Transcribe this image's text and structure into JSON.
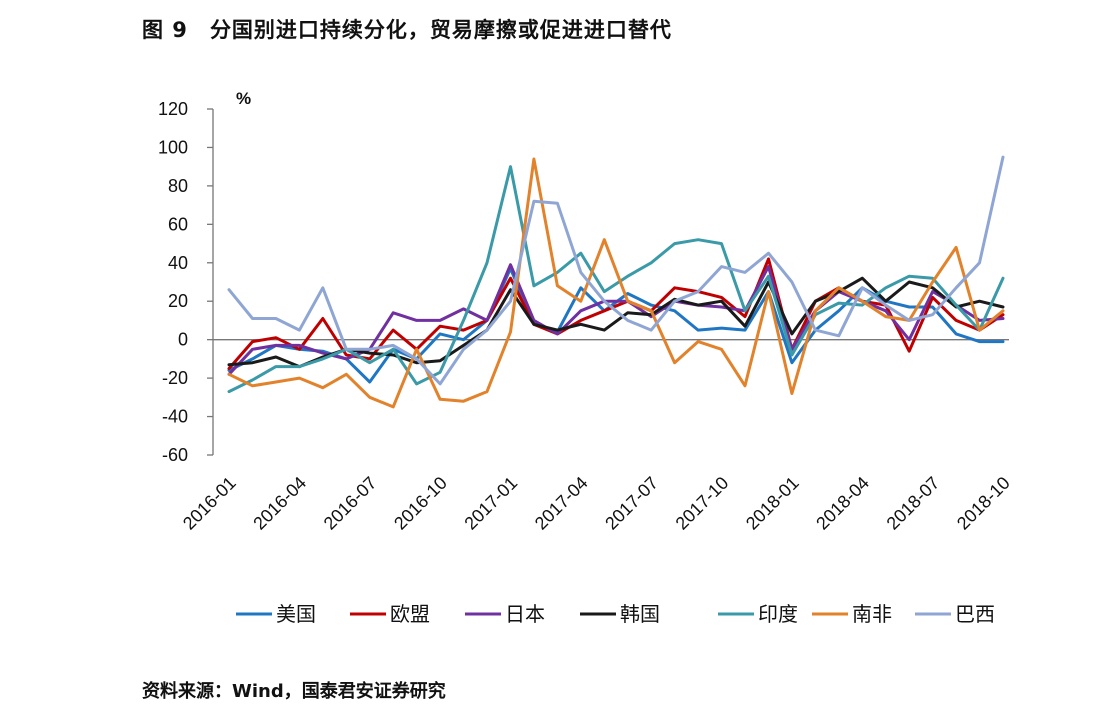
{
  "figure": {
    "label": "图 9",
    "title": "分国别进口持续分化，贸易摩擦或促进进口替代"
  },
  "source": "资料来源：Wind，国泰君安证券研究",
  "chart_data": {
    "type": "line",
    "title": "分国别进口持续分化，贸易摩擦或促进进口替代",
    "xlabel": "",
    "ylabel": "%",
    "ylim": [
      -60,
      120
    ],
    "yticks": [
      120,
      100,
      80,
      60,
      40,
      20,
      0,
      -20,
      -40,
      -60
    ],
    "grid": false,
    "legend_position": "bottom",
    "categories": [
      "2016-01",
      "2016-02",
      "2016-03",
      "2016-04",
      "2016-05",
      "2016-06",
      "2016-07",
      "2016-08",
      "2016-09",
      "2016-10",
      "2016-11",
      "2016-12",
      "2017-01",
      "2017-02",
      "2017-03",
      "2017-04",
      "2017-05",
      "2017-06",
      "2017-07",
      "2017-08",
      "2017-09",
      "2017-10",
      "2017-11",
      "2017-12",
      "2018-01",
      "2018-02",
      "2018-03",
      "2018-04",
      "2018-05",
      "2018-06",
      "2018-07",
      "2018-08",
      "2018-09",
      "2018-10"
    ],
    "tick_labels": [
      "2016-01",
      "2016-04",
      "2016-07",
      "2016-10",
      "2017-01",
      "2017-04",
      "2017-07",
      "2017-10",
      "2018-01",
      "2018-04",
      "2018-07",
      "2018-10"
    ],
    "series": [
      {
        "name": "美国",
        "color": "#1f77c4",
        "values": [
          -16,
          -10,
          -3,
          -5,
          -6,
          -10,
          -22,
          -5,
          -10,
          3,
          0,
          10,
          37,
          8,
          4,
          27,
          15,
          24,
          18,
          15,
          5,
          6,
          5,
          25,
          -12,
          5,
          15,
          27,
          20,
          17,
          17,
          3,
          -1,
          -1
        ]
      },
      {
        "name": "欧盟",
        "color": "#c00000",
        "values": [
          -15,
          -1,
          1,
          -5,
          11,
          -8,
          -10,
          5,
          -5,
          7,
          5,
          10,
          32,
          8,
          3,
          10,
          15,
          20,
          15,
          27,
          25,
          22,
          12,
          42,
          -5,
          20,
          27,
          20,
          18,
          -6,
          22,
          10,
          5,
          13
        ]
      },
      {
        "name": "日本",
        "color": "#7030a0",
        "values": [
          -18,
          -5,
          -3,
          -3,
          -7,
          -10,
          -5,
          14,
          10,
          10,
          16,
          10,
          39,
          10,
          3,
          15,
          20,
          20,
          12,
          20,
          18,
          17,
          15,
          38,
          -5,
          15,
          25,
          20,
          15,
          0,
          25,
          18,
          10,
          11
        ]
      },
      {
        "name": "韩国",
        "color": "#1a1a1a",
        "values": [
          -13,
          -12,
          -9,
          -14,
          -9,
          -5,
          -7,
          -8,
          -12,
          -11,
          -3,
          5,
          26,
          8,
          5,
          8,
          5,
          14,
          13,
          21,
          18,
          20,
          7,
          30,
          3,
          20,
          25,
          32,
          20,
          30,
          27,
          17,
          20,
          17
        ]
      },
      {
        "name": "印度",
        "color": "#3a9aa8",
        "values": [
          -27,
          -21,
          -14,
          -14,
          -10,
          -5,
          -12,
          -5,
          -23,
          -17,
          10,
          40,
          90,
          28,
          35,
          45,
          25,
          33,
          40,
          50,
          52,
          50,
          15,
          33,
          -8,
          13,
          19,
          18,
          27,
          33,
          32,
          18,
          5,
          32
        ]
      },
      {
        "name": "南非",
        "color": "#e2822b",
        "values": [
          -18,
          -24,
          -22,
          -20,
          -25,
          -18,
          -30,
          -35,
          -5,
          -31,
          -32,
          -27,
          4,
          94,
          28,
          20,
          52,
          20,
          15,
          -12,
          -1,
          -5,
          -24,
          25,
          -28,
          15,
          27,
          20,
          12,
          10,
          30,
          48,
          5,
          15
        ]
      },
      {
        "name": "巴西",
        "color": "#8fa6d5",
        "values": [
          26,
          11,
          11,
          5,
          27,
          -5,
          -5,
          -3,
          -10,
          -23,
          -5,
          5,
          20,
          72,
          71,
          35,
          20,
          10,
          5,
          20,
          25,
          38,
          35,
          45,
          30,
          5,
          2,
          27,
          18,
          10,
          13,
          27,
          40,
          95
        ]
      }
    ]
  }
}
